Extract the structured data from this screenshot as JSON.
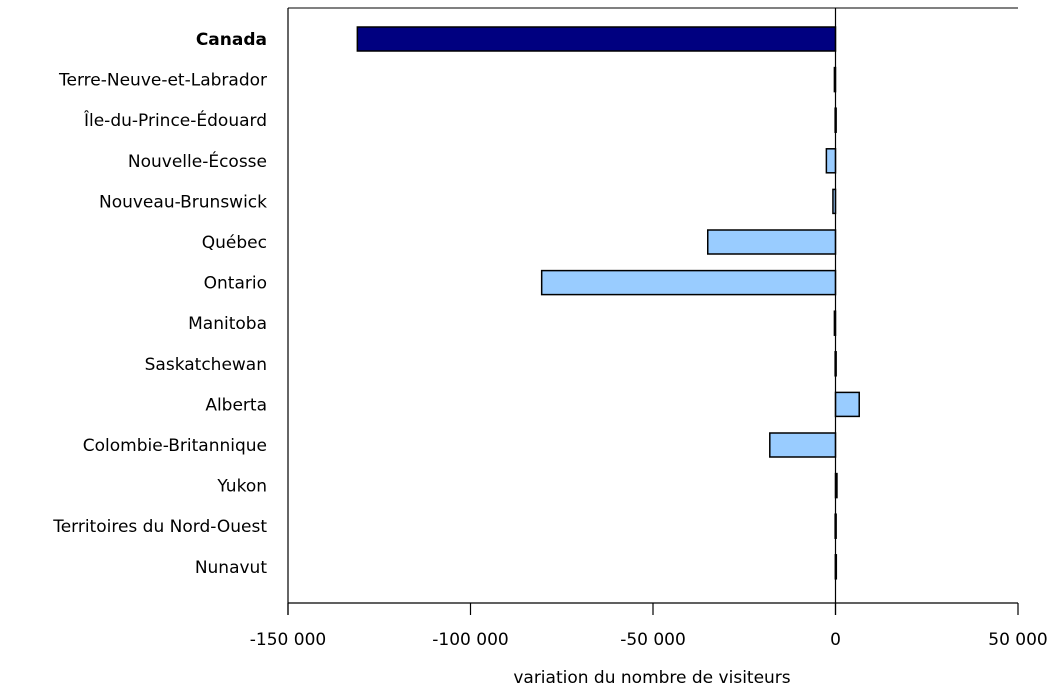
{
  "chart_data": {
    "type": "bar",
    "orientation": "horizontal",
    "categories": [
      "Canada",
      "Terre-Neuve-et-Labrador",
      "Île-du-Prince-Édouard",
      "Nouvelle-Écosse",
      "Nouveau-Brunswick",
      "Québec",
      "Ontario",
      "Manitoba",
      "Saskatchewan",
      "Alberta",
      "Colombie-Britannique",
      "Yukon",
      "Territoires du Nord-Ouest",
      "Nunavut"
    ],
    "values": [
      -131000,
      -300,
      -100,
      -2500,
      -700,
      -35000,
      -80500,
      -300,
      -100,
      6500,
      -18000,
      400,
      -100,
      -50
    ],
    "highlight_category": "Canada",
    "colors": {
      "highlight": "#000080",
      "bar": "#99ccff",
      "outline": "#000000"
    },
    "xlabel": "variation du nombre de visiteurs",
    "xlim": [
      -150000,
      50000
    ],
    "xticks": [
      -150000,
      -100000,
      -50000,
      0,
      50000
    ],
    "xtick_labels": [
      "-150 000",
      "-100 000",
      "-50 000",
      "0",
      "50 000"
    ],
    "grid": false,
    "legend": "none"
  }
}
